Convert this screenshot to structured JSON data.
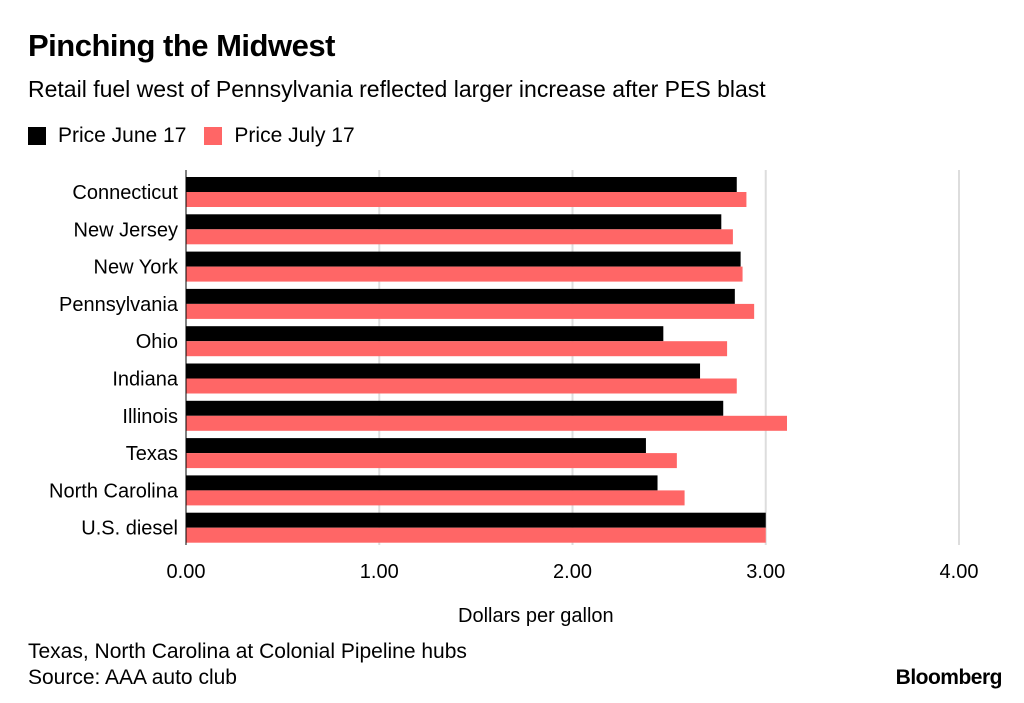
{
  "title": "Pinching the Midwest",
  "subtitle": "Retail fuel west of Pennsylvania reflected larger increase after PES blast",
  "notes": [
    "Texas, North Carolina at Colonial Pipeline hubs",
    "Source: AAA auto club"
  ],
  "brand": "Bloomberg",
  "colors": {
    "june": "#000000",
    "july": "#ff6666",
    "grid": "#dddddd"
  },
  "chart_data": {
    "type": "bar",
    "orientation": "horizontal",
    "title": "Pinching the Midwest",
    "subtitle": "Retail fuel west of Pennsylvania reflected larger increase after PES blast",
    "xlabel": "Dollars per gallon",
    "ylabel": "",
    "xlim": [
      0,
      4
    ],
    "xticks": [
      "0.00",
      "1.00",
      "2.00",
      "3.00",
      "4.00"
    ],
    "grid": true,
    "legend": "top-left",
    "categories": [
      "Connecticut",
      "New Jersey",
      "New York",
      "Pennsylvania",
      "Ohio",
      "Indiana",
      "Illinois",
      "Texas",
      "North Carolina",
      "U.S. diesel"
    ],
    "series": [
      {
        "name": "Price June 17",
        "values": [
          2.85,
          2.77,
          2.87,
          2.84,
          2.47,
          2.66,
          2.78,
          2.38,
          2.44,
          3.0
        ]
      },
      {
        "name": "Price July 17",
        "values": [
          2.9,
          2.83,
          2.88,
          2.94,
          2.8,
          2.85,
          3.11,
          2.54,
          2.58,
          3.0
        ]
      }
    ]
  }
}
